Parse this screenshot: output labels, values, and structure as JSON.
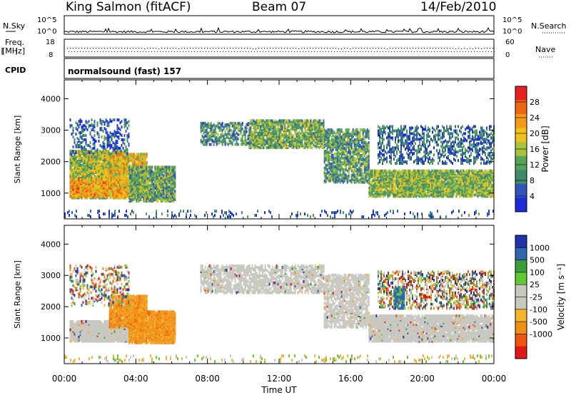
{
  "header": {
    "station": "King Salmon (fitACF)",
    "beam": "Beam 07",
    "date": "14/Feb/2010"
  },
  "top_panels": {
    "nsky_label": "N.Sky",
    "nsky_ticks": [
      "10^5",
      "10^0"
    ],
    "nsearch_label": "N.Search",
    "nsearch_ticks": [
      "10^5",
      "10^0"
    ],
    "freq_label_line1": "Freq.",
    "freq_label_line2": "[MHz]",
    "freq_ticks": [
      "18",
      "8"
    ],
    "nave_label": "Nave",
    "nave_ticks": [
      "60",
      "0"
    ],
    "cpid_label": "CPID",
    "cpid_text": "normalsound (fast) 157"
  },
  "colors": {
    "power_scale": [
      "#1d2cd8",
      "#2f55b8",
      "#3f8a6a",
      "#58a35a",
      "#a8c43c",
      "#f2c21a",
      "#f59a16",
      "#ee6611",
      "#e52222"
    ],
    "velocity_scale": [
      "#e01818",
      "#ee5511",
      "#f08f18",
      "#f4b52a",
      "#c8c8c0",
      "#c8c8c0",
      "#5fc832",
      "#3a9c3a",
      "#2f66b0",
      "#2233aa"
    ]
  },
  "chart_data": [
    {
      "type": "heatmap",
      "name": "power",
      "xlabel": "",
      "ylabel": "Slant Range [km]",
      "xlim": [
        0,
        24
      ],
      "ylim": [
        180,
        4600
      ],
      "yticks": [
        1000,
        2000,
        3000,
        4000
      ],
      "xticks": [
        "00:00",
        "04:00",
        "08:00",
        "12:00",
        "16:00",
        "20:00",
        "00:00"
      ],
      "colorbar_label": "Power [dB]",
      "colorbar_ticks": [
        "28",
        "24",
        "20",
        "16",
        "12",
        "8",
        "4"
      ],
      "colorbar_range": [
        0,
        32
      ],
      "regions": [
        {
          "t0": 0.3,
          "t1": 3.5,
          "r0": 800,
          "r1": 2300,
          "level": 16,
          "density": 0.85
        },
        {
          "t0": 0.3,
          "t1": 4.4,
          "r0": 850,
          "r1": 1400,
          "level": 22,
          "density": 0.9
        },
        {
          "t0": 2.5,
          "t1": 4.6,
          "r0": 1200,
          "r1": 2200,
          "level": 20,
          "density": 0.8
        },
        {
          "t0": 0.3,
          "t1": 3.6,
          "r0": 2200,
          "r1": 3300,
          "level": 6,
          "density": 0.25
        },
        {
          "t0": 3.6,
          "t1": 6.2,
          "r0": 700,
          "r1": 1800,
          "level": 12,
          "density": 0.85
        },
        {
          "t0": 7.6,
          "t1": 10.3,
          "r0": 2500,
          "r1": 3200,
          "level": 10,
          "density": 0.55
        },
        {
          "t0": 10.3,
          "t1": 14.5,
          "r0": 2400,
          "r1": 3300,
          "level": 13,
          "density": 0.75
        },
        {
          "t0": 14.5,
          "t1": 17.0,
          "r0": 1300,
          "r1": 3000,
          "level": 11,
          "density": 0.65
        },
        {
          "t0": 17.0,
          "t1": 24.0,
          "r0": 850,
          "r1": 1700,
          "level": 14,
          "density": 0.85
        },
        {
          "t0": 17.5,
          "t1": 24.0,
          "r0": 1900,
          "r1": 3100,
          "level": 7,
          "density": 0.35
        },
        {
          "t0": 0.0,
          "t1": 24.0,
          "r0": 200,
          "r1": 400,
          "level": 5,
          "density": 0.12
        }
      ]
    },
    {
      "type": "heatmap",
      "name": "velocity",
      "xlabel": "Time UT",
      "ylabel": "Slant Range [km]",
      "xlim": [
        0,
        24
      ],
      "ylim": [
        180,
        4600
      ],
      "yticks": [
        1000,
        2000,
        3000,
        4000
      ],
      "xticks": [
        "00:00",
        "04:00",
        "08:00",
        "12:00",
        "16:00",
        "20:00",
        "00:00"
      ],
      "colorbar_label": "Velocity [m s⁻¹]",
      "colorbar_ticks": [
        "1000",
        "500",
        "100",
        "25",
        "-25",
        "-100",
        "-500",
        "-1000"
      ],
      "regions": [
        {
          "t0": 0.3,
          "t1": 4.4,
          "r0": 850,
          "r1": 1500,
          "cls": "gray",
          "density": 0.9
        },
        {
          "t0": 2.5,
          "t1": 4.6,
          "r0": 1300,
          "r1": 2300,
          "cls": "orange",
          "density": 0.85
        },
        {
          "t0": 3.6,
          "t1": 6.2,
          "r0": 800,
          "r1": 1800,
          "cls": "orange",
          "density": 0.9
        },
        {
          "t0": 0.3,
          "t1": 3.6,
          "r0": 2000,
          "r1": 3300,
          "cls": "mixed",
          "density": 0.25
        },
        {
          "t0": 7.6,
          "t1": 14.5,
          "r0": 2400,
          "r1": 3300,
          "cls": "gray",
          "density": 0.6
        },
        {
          "t0": 14.5,
          "t1": 17.0,
          "r0": 1300,
          "r1": 3000,
          "cls": "gray",
          "density": 0.65
        },
        {
          "t0": 17.0,
          "t1": 24.0,
          "r0": 850,
          "r1": 1700,
          "cls": "gray",
          "density": 0.85
        },
        {
          "t0": 17.5,
          "t1": 24.0,
          "r0": 1900,
          "r1": 3100,
          "cls": "mixed",
          "density": 0.35
        },
        {
          "t0": 18.4,
          "t1": 19.0,
          "r0": 1900,
          "r1": 2600,
          "cls": "blue",
          "density": 0.7
        },
        {
          "t0": 0.0,
          "t1": 24.0,
          "r0": 200,
          "r1": 400,
          "cls": "yellow",
          "density": 0.12
        }
      ]
    }
  ]
}
